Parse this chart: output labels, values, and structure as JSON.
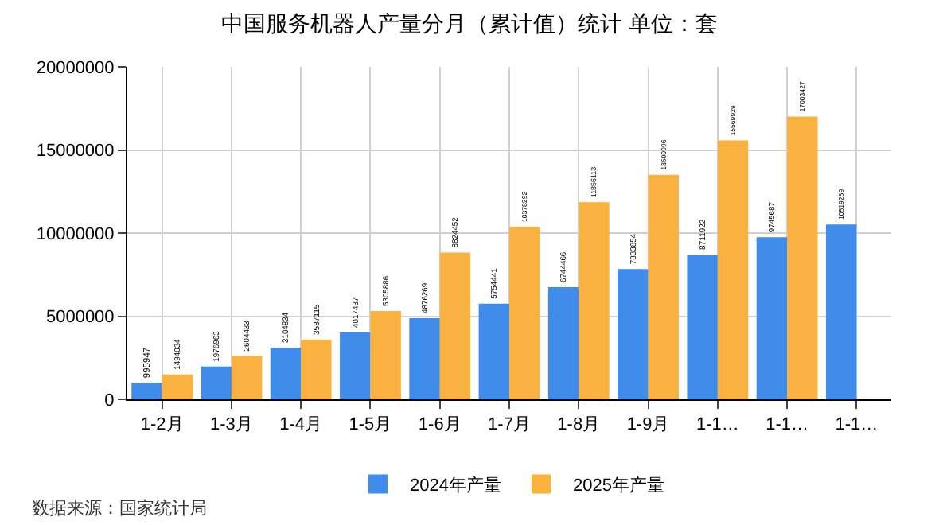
{
  "chart_data": {
    "type": "bar",
    "title": "中国服务机器人产量分月（累计值）统计 单位：套",
    "categories": [
      "1-2月",
      "1-3月",
      "1-4月",
      "1-5月",
      "1-6月",
      "1-7月",
      "1-8月",
      "1-9月",
      "1-1…",
      "1-1…",
      "1-1…"
    ],
    "series": [
      {
        "name": "2024年产量",
        "color": "#3f8ceb",
        "values": [
          995947,
          1976963,
          3104834,
          4017437,
          4876269,
          5754441,
          6744466,
          7833854,
          8711922,
          9745687,
          10519259
        ]
      },
      {
        "name": "2025年产量",
        "color": "#f9b13f",
        "values": [
          1494034,
          2604433,
          3587115,
          5305886,
          8824452,
          10378292,
          11856113,
          13500996,
          15569929,
          17003427,
          null
        ]
      }
    ],
    "ylim": [
      0,
      20000000
    ],
    "yticks": [
      0,
      5000000,
      10000000,
      15000000,
      20000000
    ],
    "grid": true,
    "legend": "bottom",
    "data_labels": true,
    "annotations": [
      "数据来源：国家统计局"
    ]
  }
}
